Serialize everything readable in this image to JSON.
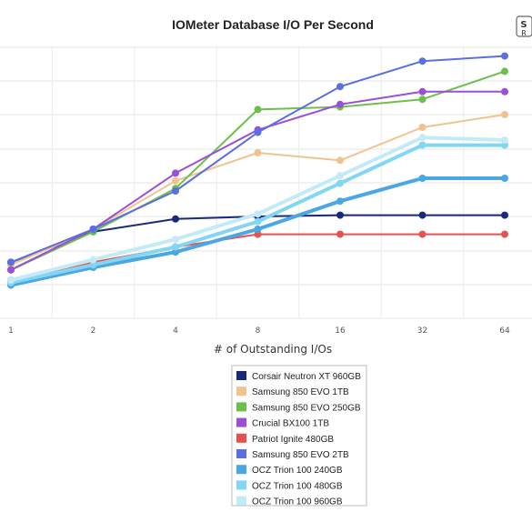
{
  "chart_data": {
    "type": "line",
    "title": "IOMeter Database I/O Per Second",
    "xlabel": "# of Outstanding I/Os",
    "ylabel": "",
    "categories": [
      "1",
      "2",
      "4",
      "8",
      "16",
      "32",
      "64"
    ],
    "ylim": [
      0,
      100
    ],
    "grid": true,
    "legend": "bottom-center",
    "series": [
      {
        "name": "Corsair Neutron XT 960GB",
        "color": "#1a2a7a",
        "values": [
          22,
          34,
          39,
          40,
          40.5,
          40.5,
          40.5
        ]
      },
      {
        "name": "Samsung 850 EVO 1TB",
        "color": "#f0c38e",
        "values": [
          21,
          35,
          54,
          65,
          62,
          75,
          80
        ]
      },
      {
        "name": "Samsung 850 EVO 250GB",
        "color": "#6cc04a",
        "values": [
          19,
          34,
          51,
          82,
          83,
          86,
          97
        ]
      },
      {
        "name": "Crucial BX100 1TB",
        "color": "#9b4fd9",
        "values": [
          19,
          35,
          57,
          74,
          84,
          89,
          89
        ]
      },
      {
        "name": "Patriot Ignite 480GB",
        "color": "#e8504f",
        "values": [
          15,
          22,
          28,
          33,
          33,
          33,
          33
        ]
      },
      {
        "name": "Samsung 850 EVO 2TB",
        "color": "#5b6fe0",
        "values": [
          22,
          35,
          50,
          73,
          91,
          101,
          103
        ]
      },
      {
        "name": "OCZ Trion 100 240GB",
        "color": "#4aa7e4",
        "values": [
          13,
          20,
          26,
          35,
          46,
          55,
          55
        ]
      },
      {
        "name": "OCZ Trion 100 480GB",
        "color": "#82d6f3",
        "values": [
          14,
          21,
          28,
          38,
          53,
          68,
          68
        ]
      },
      {
        "name": "OCZ Trion 100 960GB",
        "color": "#c3eaf7",
        "values": [
          15,
          23,
          31,
          41,
          56,
          71,
          70
        ]
      }
    ]
  }
}
